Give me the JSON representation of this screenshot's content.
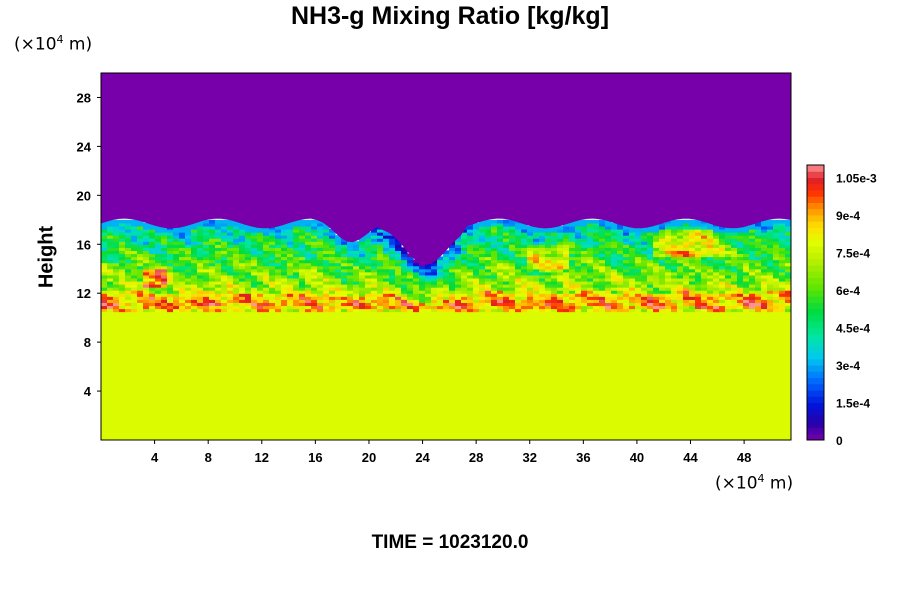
{
  "chart_data": {
    "type": "heatmap",
    "title": "NH3-g Mixing Ratio [kg/kg]",
    "xlabel": "",
    "ylabel": "Height",
    "x_unit": {
      "prefix": "(×10",
      "exp": "4",
      "suffix": " m)"
    },
    "y_unit": {
      "prefix": "(×10",
      "exp": "4",
      "suffix": " m)"
    },
    "xlim": [
      0,
      51.5
    ],
    "ylim": [
      0,
      30
    ],
    "x_ticks": [
      "4",
      "8",
      "12",
      "16",
      "20",
      "24",
      "28",
      "32",
      "36",
      "40",
      "44",
      "48"
    ],
    "y_ticks": [
      "4",
      "8",
      "12",
      "16",
      "20",
      "24",
      "28"
    ],
    "colorbar": {
      "range": [
        0,
        0.0011
      ],
      "tick_labels": [
        "0",
        "1.5e-4",
        "3e-4",
        "4.5e-4",
        "6e-4",
        "7.5e-4",
        "9e-4",
        "1.05e-3"
      ],
      "tick_values": [
        0,
        0.00015,
        0.0003,
        0.00045,
        0.0006,
        0.00075,
        0.0009,
        0.00105
      ]
    },
    "regions": [
      {
        "name": "upper",
        "y_range": [
          18,
          30
        ],
        "value": 0
      },
      {
        "name": "mixing-layer",
        "y_range": [
          10.5,
          18
        ],
        "value_range": [
          0,
          0.00108
        ]
      },
      {
        "name": "lower",
        "y_range": [
          0,
          10.5
        ],
        "value": 0.00078
      }
    ],
    "footer": "TIME = 1023120.0"
  }
}
